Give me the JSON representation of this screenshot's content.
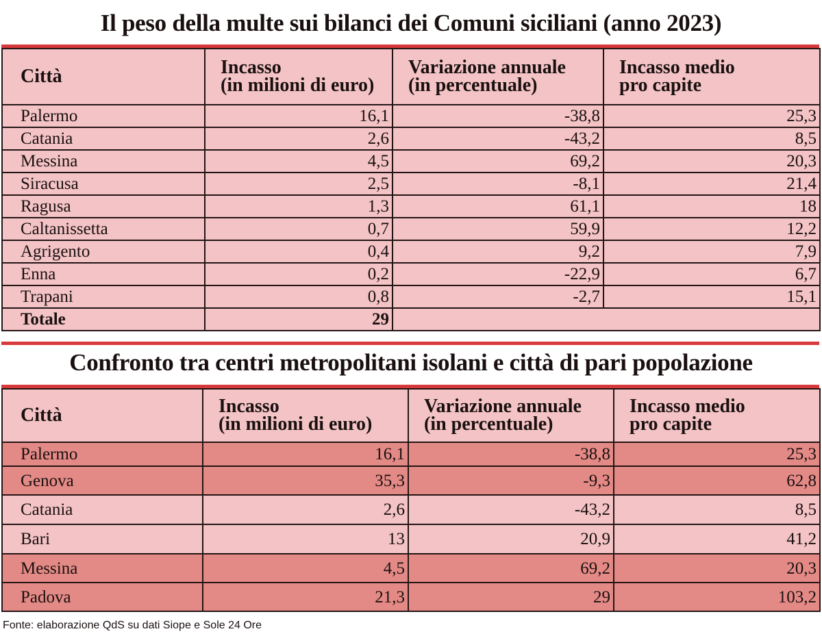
{
  "table1": {
    "title": "Il peso della multe sui bilanci dei Comuni siciliani (anno 2023)",
    "headers": [
      {
        "line1": "Città",
        "line2": ""
      },
      {
        "line1": "Incasso",
        "line2": "(in milioni di euro)"
      },
      {
        "line1": "Variazione annuale",
        "line2": "(in percentuale)"
      },
      {
        "line1": "Incasso medio",
        "line2": "pro capite"
      }
    ],
    "rows": [
      [
        "Palermo",
        "16,1",
        "-38,8",
        "25,3"
      ],
      [
        "Catania",
        "2,6",
        "-43,2",
        "8,5"
      ],
      [
        "Messina",
        "4,5",
        "69,2",
        "20,3"
      ],
      [
        "Siracusa",
        "2,5",
        "-8,1",
        "21,4"
      ],
      [
        "Ragusa",
        "1,3",
        "61,1",
        "18"
      ],
      [
        "Caltanissetta",
        "0,7",
        "59,9",
        "12,2"
      ],
      [
        "Agrigento",
        "0,4",
        "9,2",
        "7,9"
      ],
      [
        "Enna",
        "0,2",
        "-22,9",
        "6,7"
      ],
      [
        "Trapani",
        "0,8",
        "-2,7",
        "15,1"
      ]
    ],
    "total": {
      "label": "Totale",
      "value": "29"
    }
  },
  "table2": {
    "title": "Confronto tra centri metropolitani isolani e città di pari popolazione",
    "headers": [
      {
        "line1": "Città",
        "line2": ""
      },
      {
        "line1": "Incasso",
        "line2": "(in milioni di euro)"
      },
      {
        "line1": "Variazione annuale",
        "line2": "(in percentuale)"
      },
      {
        "line1": "Incasso medio",
        "line2": "pro capite"
      }
    ],
    "rows": [
      [
        "Palermo",
        "16,1",
        "-38,8",
        "25,3"
      ],
      [
        "Genova",
        "35,3",
        "-9,3",
        "62,8"
      ],
      [
        "Catania",
        "2,6",
        "-43,2",
        "8,5"
      ],
      [
        "Bari",
        "13",
        "20,9",
        "41,2"
      ],
      [
        "Messina",
        "4,5",
        "69,2",
        "20,3"
      ],
      [
        "Padova",
        "21,3",
        "29",
        "103,2"
      ]
    ],
    "row_shading": [
      "dark",
      "dark",
      "light",
      "light",
      "dark",
      "dark"
    ]
  },
  "source": "Fonte: elaborazione QdS su dati Siope e Sole 24 Ore",
  "colors": {
    "light": "#f3c3c5",
    "dark": "#e48a86",
    "accent": "#d83a3c"
  }
}
